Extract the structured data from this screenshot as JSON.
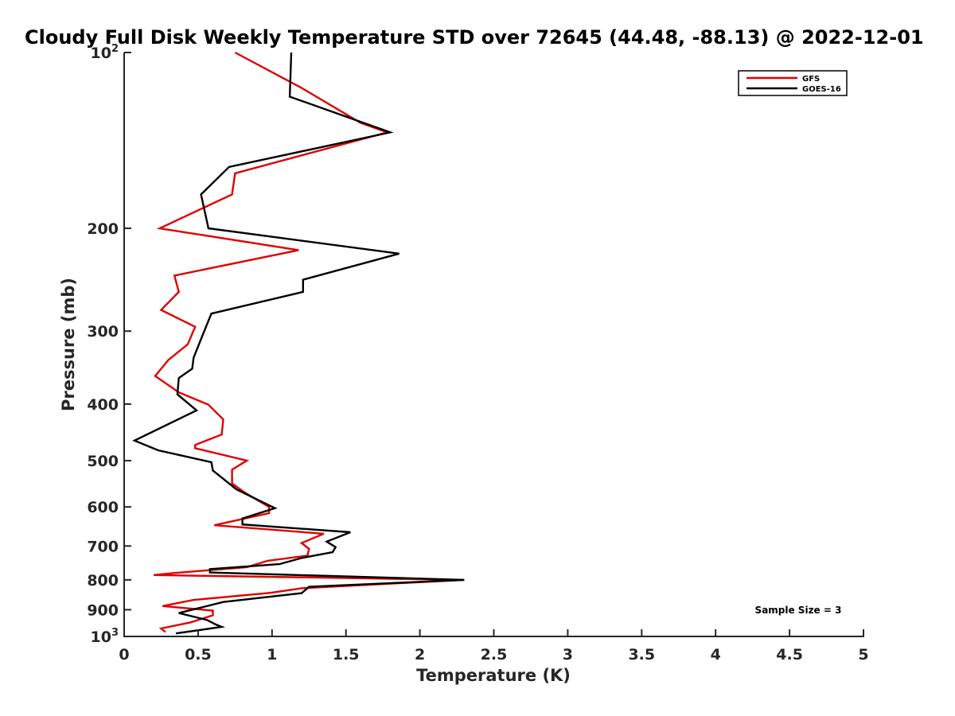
{
  "chart_data": {
    "type": "line",
    "title": "Cloudy Full Disk Weekly Temperature STD over 72645 (44.48, -88.13) @ 2022-12-01",
    "xlabel": "Temperature (K)",
    "ylabel": "Pressure (mb)",
    "xlim": [
      0,
      5
    ],
    "ylim": [
      1000,
      100
    ],
    "y_scale": "log",
    "y_reversed": true,
    "x_ticks": [
      "0",
      "0.5",
      "1",
      "1.5",
      "2",
      "2.5",
      "3",
      "3.5",
      "4",
      "4.5",
      "5"
    ],
    "y_ticks": [
      {
        "value": 100,
        "base": "10",
        "exp": "2"
      },
      {
        "value": 200,
        "label": "200"
      },
      {
        "value": 300,
        "label": "300"
      },
      {
        "value": 400,
        "label": "400"
      },
      {
        "value": 500,
        "label": "500"
      },
      {
        "value": 600,
        "label": "600"
      },
      {
        "value": 700,
        "label": "700"
      },
      {
        "value": 800,
        "label": "800"
      },
      {
        "value": 900,
        "label": "900"
      },
      {
        "value": 1000,
        "base": "10",
        "exp": "3"
      }
    ],
    "grid": false,
    "legend_position": "top-right",
    "annotation": "Sample Size = 3",
    "series": [
      {
        "name": "GFS",
        "color": "#e00000",
        "points": [
          [
            0.75,
            100
          ],
          [
            1.2,
            115
          ],
          [
            1.6,
            132
          ],
          [
            1.78,
            137
          ],
          [
            0.75,
            161
          ],
          [
            0.73,
            175
          ],
          [
            0.24,
            200
          ],
          [
            1.18,
            218
          ],
          [
            0.34,
            241
          ],
          [
            0.37,
            257
          ],
          [
            0.25,
            276
          ],
          [
            0.48,
            295
          ],
          [
            0.43,
            316
          ],
          [
            0.3,
            336
          ],
          [
            0.21,
            358
          ],
          [
            0.37,
            382
          ],
          [
            0.57,
            401
          ],
          [
            0.67,
            425
          ],
          [
            0.66,
            451
          ],
          [
            0.48,
            470
          ],
          [
            0.48,
            476
          ],
          [
            0.83,
            500
          ],
          [
            0.73,
            518
          ],
          [
            0.73,
            547
          ],
          [
            0.82,
            568
          ],
          [
            0.98,
            600
          ],
          [
            0.98,
            615
          ],
          [
            0.61,
            645
          ],
          [
            1.35,
            667
          ],
          [
            1.2,
            692
          ],
          [
            1.25,
            708
          ],
          [
            1.24,
            727
          ],
          [
            0.97,
            742
          ],
          [
            0.83,
            761
          ],
          [
            0.33,
            779
          ],
          [
            0.2,
            785
          ],
          [
            2.3,
            800
          ],
          [
            1.2,
            827
          ],
          [
            0.99,
            842
          ],
          [
            0.47,
            866
          ],
          [
            0.26,
            887
          ],
          [
            0.6,
            903
          ],
          [
            0.6,
            920
          ],
          [
            0.45,
            946
          ],
          [
            0.25,
            969
          ],
          [
            0.28,
            983
          ]
        ]
      },
      {
        "name": "GOES-16",
        "color": "#000000",
        "points": [
          [
            1.13,
            100
          ],
          [
            1.12,
            119
          ],
          [
            1.8,
            137
          ],
          [
            0.71,
            157
          ],
          [
            0.52,
            175
          ],
          [
            0.57,
            200
          ],
          [
            1.86,
            221
          ],
          [
            1.21,
            245
          ],
          [
            1.21,
            257
          ],
          [
            0.59,
            280
          ],
          [
            0.53,
            305
          ],
          [
            0.47,
            333
          ],
          [
            0.46,
            348
          ],
          [
            0.37,
            361
          ],
          [
            0.36,
            385
          ],
          [
            0.49,
            410
          ],
          [
            0.07,
            462
          ],
          [
            0.23,
            480
          ],
          [
            0.59,
            503
          ],
          [
            0.6,
            520
          ],
          [
            0.76,
            560
          ],
          [
            1.02,
            603
          ],
          [
            0.8,
            628
          ],
          [
            0.8,
            643
          ],
          [
            1.53,
            663
          ],
          [
            1.37,
            688
          ],
          [
            1.43,
            703
          ],
          [
            1.41,
            717
          ],
          [
            1.2,
            734
          ],
          [
            1.05,
            752
          ],
          [
            0.58,
            767
          ],
          [
            0.58,
            777
          ],
          [
            2.3,
            800
          ],
          [
            1.25,
            822
          ],
          [
            1.2,
            843
          ],
          [
            0.67,
            873
          ],
          [
            0.5,
            895
          ],
          [
            0.37,
            912
          ],
          [
            0.56,
            937
          ],
          [
            0.62,
            954
          ],
          [
            0.66,
            963
          ],
          [
            0.35,
            988
          ]
        ]
      }
    ]
  }
}
